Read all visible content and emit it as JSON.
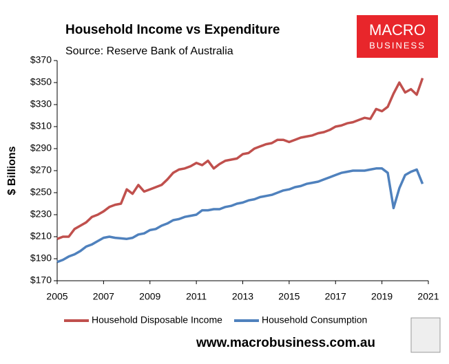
{
  "chart_data": {
    "type": "line",
    "title": "Household Income vs Expenditure",
    "subtitle": "Source: Reserve Bank of Australia",
    "ylabel": "$ Billions",
    "brand": {
      "line1": "MACRO",
      "line2": "BUSINESS"
    },
    "footer": "www.macrobusiness.com.au",
    "x": [
      2005,
      2005.25,
      2005.5,
      2005.75,
      2006,
      2006.25,
      2006.5,
      2006.75,
      2007,
      2007.25,
      2007.5,
      2007.75,
      2008,
      2008.25,
      2008.5,
      2008.75,
      2009,
      2009.25,
      2009.5,
      2009.75,
      2010,
      2010.25,
      2010.5,
      2010.75,
      2011,
      2011.25,
      2011.5,
      2011.75,
      2012,
      2012.25,
      2012.5,
      2012.75,
      2013,
      2013.25,
      2013.5,
      2013.75,
      2014,
      2014.25,
      2014.5,
      2014.75,
      2015,
      2015.25,
      2015.5,
      2015.75,
      2016,
      2016.25,
      2016.5,
      2016.75,
      2017,
      2017.25,
      2017.5,
      2017.75,
      2018,
      2018.25,
      2018.5,
      2018.75,
      2019,
      2019.25,
      2019.5,
      2019.75,
      2020,
      2020.25,
      2020.5,
      2020.75
    ],
    "series": [
      {
        "name": "Household Disposable Income",
        "color": "#c0504d",
        "values": [
          208,
          210,
          210,
          217,
          220,
          223,
          228,
          230,
          233,
          237,
          239,
          240,
          253,
          249,
          257,
          251,
          253,
          255,
          257,
          262,
          268,
          271,
          272,
          274,
          277,
          275,
          279,
          272,
          276,
          279,
          280,
          281,
          285,
          286,
          290,
          292,
          294,
          295,
          298,
          298,
          296,
          298,
          300,
          301,
          302,
          304,
          305,
          307,
          310,
          311,
          313,
          314,
          316,
          318,
          317,
          326,
          324,
          328,
          340,
          350,
          341,
          344,
          339,
          354
        ]
      },
      {
        "name": "Household Consumption",
        "color": "#4f81bd",
        "values": [
          187,
          189,
          192,
          194,
          197,
          201,
          203,
          206,
          209,
          210,
          209,
          208.5,
          208,
          209,
          212,
          213,
          216,
          217,
          220,
          222,
          225,
          226,
          228,
          229,
          230,
          234,
          234,
          235,
          235,
          237,
          238,
          240,
          241,
          243,
          244,
          246,
          247,
          248,
          250,
          252,
          253,
          255,
          256,
          258,
          259,
          260,
          262,
          264,
          266,
          268,
          269,
          270,
          270,
          270,
          271,
          272,
          272,
          268,
          236,
          254,
          266,
          269,
          271,
          258
        ]
      }
    ],
    "xlim": [
      2005,
      2021
    ],
    "xticks": [
      2005,
      2007,
      2009,
      2011,
      2013,
      2015,
      2017,
      2019,
      2021
    ],
    "ylim": [
      170,
      370
    ],
    "yticks": [
      {
        "value": 170,
        "label": "$170"
      },
      {
        "value": 190,
        "label": "$190"
      },
      {
        "value": 210,
        "label": "$210"
      },
      {
        "value": 230,
        "label": "$230"
      },
      {
        "value": 250,
        "label": "$250"
      },
      {
        "value": 270,
        "label": "$270"
      },
      {
        "value": 290,
        "label": "$290"
      },
      {
        "value": 310,
        "label": "$310"
      },
      {
        "value": 330,
        "label": "$330"
      },
      {
        "value": 350,
        "label": "$350"
      },
      {
        "value": 370,
        "label": "$370"
      }
    ],
    "grid": false,
    "legend": "bottom"
  }
}
